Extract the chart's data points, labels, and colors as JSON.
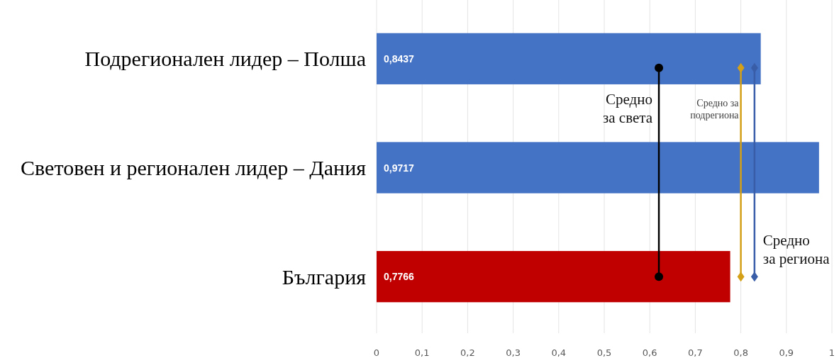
{
  "chart_data": {
    "type": "bar",
    "orientation": "horizontal",
    "categories": [
      "Подрегионален лидер – Полша",
      "Световен и регионален лидер – Дания",
      "България"
    ],
    "values": [
      0.8437,
      0.9717,
      0.7766
    ],
    "colors": [
      "#4472c4",
      "#4472c4",
      "#c00000"
    ],
    "value_labels": [
      "0,8437",
      "0,9717",
      "0,7766"
    ],
    "xlim": [
      0,
      1
    ],
    "xticks": [
      0,
      {
        "value": 0.1,
        "label": "0,1"
      },
      {
        "value": 0.2,
        "label": "0,2"
      },
      {
        "value": 0.3,
        "label": "0,3"
      },
      {
        "value": 0.4,
        "label": "0,4"
      },
      {
        "value": 0.5,
        "label": "0,5"
      },
      {
        "value": 0.6,
        "label": "0,6"
      },
      {
        "value": 0.7,
        "label": "0,7"
      },
      {
        "value": 0.8,
        "label": "0,8"
      },
      {
        "value": 0.9,
        "label": "0,9"
      },
      1
    ],
    "grid": "x",
    "ref_lines": [
      {
        "axis": "x",
        "value": 0.62,
        "label": "Средно\nза света",
        "color": "#000000"
      },
      {
        "axis": "x",
        "value": 0.8,
        "label": "Средно за\nподрегиона",
        "color": "#d4a017"
      },
      {
        "axis": "x",
        "value": 0.83,
        "label": "Средно\nза региона",
        "color": "#3a5da8"
      }
    ]
  }
}
